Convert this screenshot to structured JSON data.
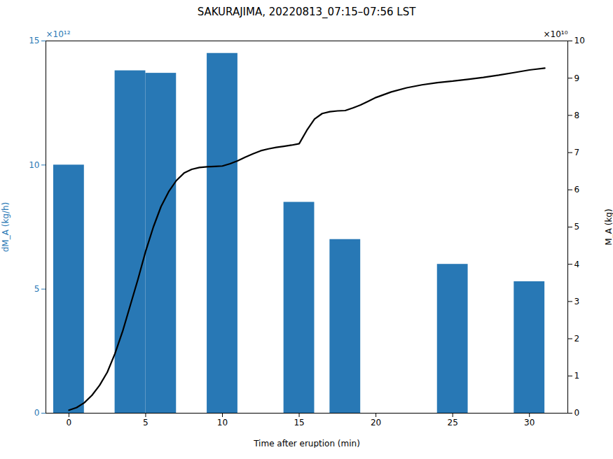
{
  "chart_data": {
    "type": "bar",
    "title": "SAKURAJIMA, 20220813_07:15–07:56 LST",
    "xlabel": "Time after eruption (min)",
    "ylabel": "dM_A (kg/h)",
    "y2label": "M_A (kg)",
    "annotations": [
      "×10¹²",
      "×10¹⁰"
    ],
    "xlim": [
      -1.5,
      32.5
    ],
    "xticks": [
      0,
      5,
      10,
      15,
      20,
      25,
      30
    ],
    "ylim": [
      0,
      15
    ],
    "yticks": [
      0,
      5,
      10,
      15
    ],
    "y2lim": [
      0,
      10
    ],
    "y2ticks": [
      0,
      1,
      2,
      3,
      4,
      5,
      6,
      7,
      8,
      9,
      10
    ],
    "grid": false,
    "series": [
      {
        "type": "bar",
        "color": "#2878b5",
        "x": [
          0,
          4,
          6,
          10,
          15,
          18,
          25,
          30
        ],
        "values": [
          10.0,
          13.8,
          13.7,
          14.5,
          8.5,
          7.0,
          6.0,
          5.3
        ]
      },
      {
        "type": "line",
        "color": "black",
        "axis": "y2",
        "x": [
          0,
          0.5,
          1,
          1.5,
          2,
          2.5,
          3,
          3.5,
          4,
          4.5,
          5,
          5.5,
          6,
          6.5,
          7,
          7.5,
          8,
          8.5,
          9,
          9.5,
          10,
          10.5,
          11,
          11.5,
          12,
          12.5,
          13,
          13.5,
          14,
          14.5,
          15,
          15.5,
          16,
          16.5,
          17,
          17.5,
          18,
          18.5,
          19,
          19.5,
          20,
          21,
          22,
          23,
          24,
          25,
          26,
          27,
          28,
          29,
          30,
          31
        ],
        "values": [
          0.08,
          0.15,
          0.28,
          0.48,
          0.75,
          1.1,
          1.6,
          2.2,
          2.9,
          3.6,
          4.35,
          5.0,
          5.55,
          5.95,
          6.25,
          6.45,
          6.55,
          6.6,
          6.62,
          6.63,
          6.64,
          6.7,
          6.78,
          6.88,
          6.97,
          7.05,
          7.1,
          7.14,
          7.17,
          7.2,
          7.24,
          7.6,
          7.9,
          8.05,
          8.1,
          8.12,
          8.13,
          8.2,
          8.28,
          8.38,
          8.48,
          8.63,
          8.74,
          8.82,
          8.88,
          8.92,
          8.97,
          9.02,
          9.08,
          9.15,
          9.22,
          9.27
        ]
      }
    ]
  }
}
